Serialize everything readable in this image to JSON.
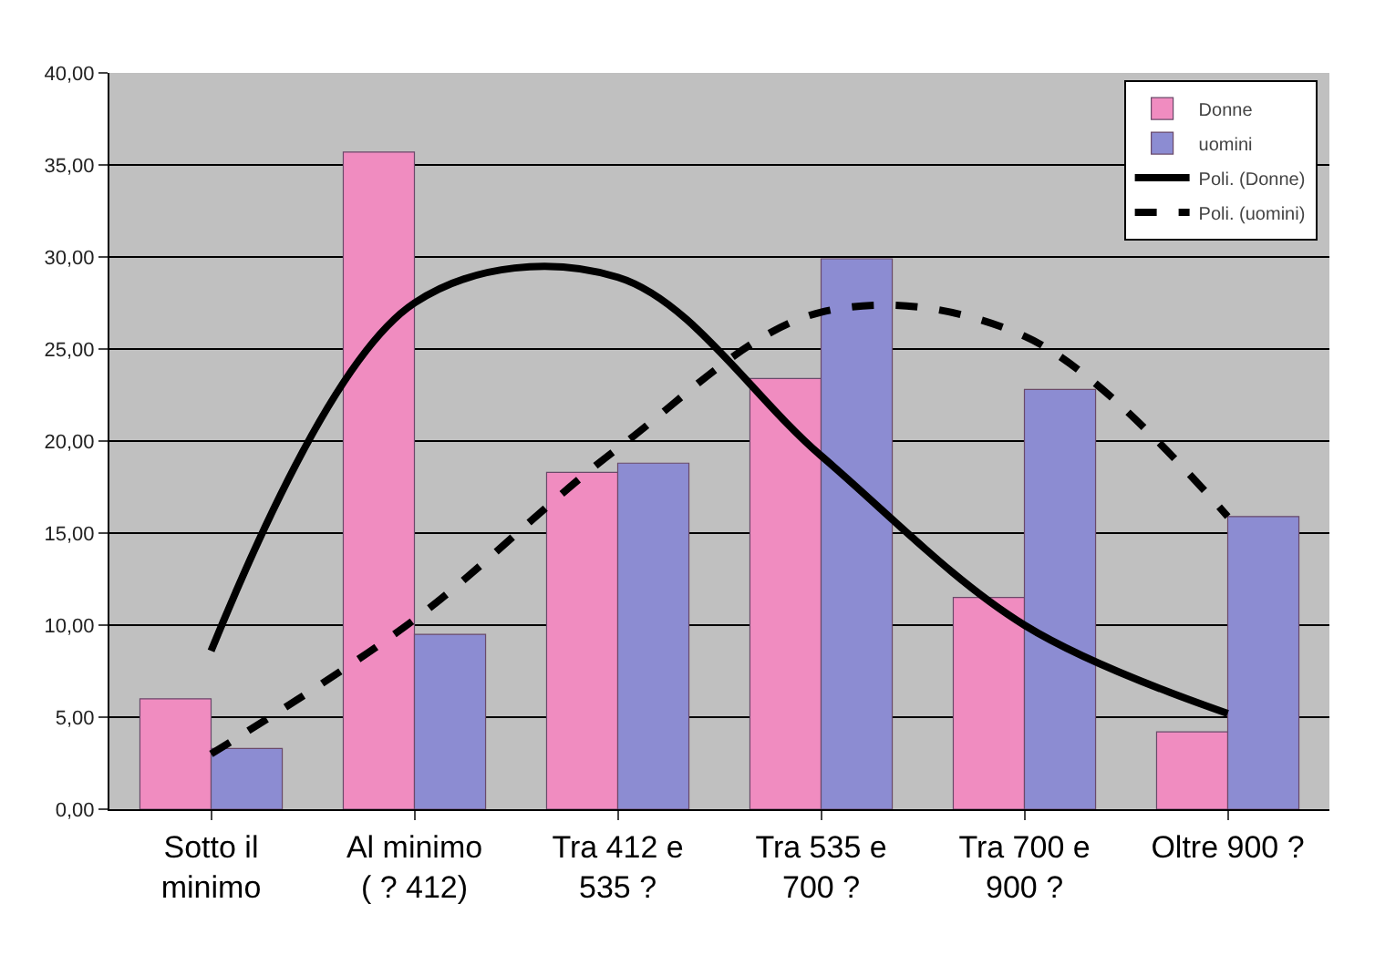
{
  "chart_data": {
    "type": "bar",
    "categories": [
      "Sotto il\nminimo",
      "Al minimo\n( ? 412)",
      "Tra 412 e\n535 ?",
      "Tra 535 e\n700 ?",
      "Tra 700 e\n900 ?",
      "Oltre 900 ?"
    ],
    "series": [
      {
        "name": "Donne",
        "color": "#f08cc0",
        "values": [
          6.0,
          35.7,
          18.3,
          23.4,
          11.5,
          4.2
        ]
      },
      {
        "name": "uomini",
        "color": "#8c8cd2",
        "values": [
          3.3,
          9.5,
          18.8,
          29.9,
          22.8,
          15.9
        ]
      },
      {
        "name": "Poli. (Donne)",
        "type": "line",
        "color": "#000000",
        "line_style": "solid",
        "values": [
          8.6,
          27.5,
          28.9,
          19.2,
          10.0,
          5.2
        ]
      },
      {
        "name": "Poli. (uomini)",
        "type": "line",
        "color": "#000000",
        "line_style": "dashed",
        "values": [
          3.0,
          10.3,
          19.6,
          27.0,
          25.7,
          15.9
        ]
      }
    ],
    "ylim": [
      0,
      40
    ],
    "yticks": [
      {
        "value": 0,
        "label": "0,00"
      },
      {
        "value": 5,
        "label": "5,00"
      },
      {
        "value": 10,
        "label": "10,00"
      },
      {
        "value": 15,
        "label": "15,00"
      },
      {
        "value": 20,
        "label": "20,00"
      },
      {
        "value": 25,
        "label": "25,00"
      },
      {
        "value": 30,
        "label": "30,00"
      },
      {
        "value": 35,
        "label": "35,00"
      },
      {
        "value": 40,
        "label": "40,00"
      }
    ],
    "grid": "y",
    "legend": "top right",
    "marker": "none"
  }
}
